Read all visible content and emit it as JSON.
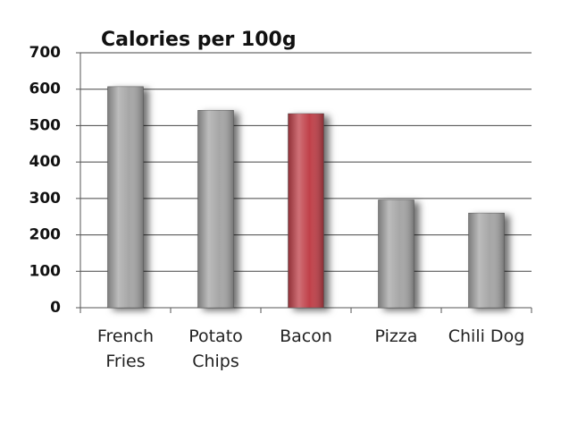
{
  "chart_data": {
    "type": "bar",
    "title": "Calories per 100g",
    "categories": [
      "French Fries",
      "Potato Chips",
      "Bacon",
      "Pizza",
      "Chili Dog"
    ],
    "values": [
      607,
      542,
      533,
      296,
      260
    ],
    "colors": [
      "#a6a6a6",
      "#a6a6a6",
      "#c0404a",
      "#a6a6a6",
      "#a6a6a6"
    ],
    "ylim": [
      0,
      700
    ],
    "yticks": [
      0,
      100,
      200,
      300,
      400,
      500,
      600,
      700
    ],
    "grid": true
  }
}
